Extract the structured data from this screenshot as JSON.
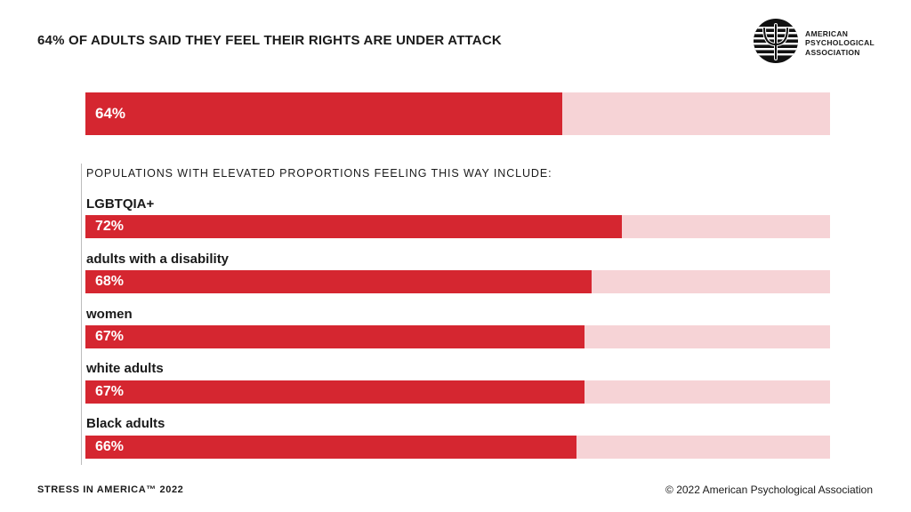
{
  "title": "64% OF ADULTS SAID THEY FEEL THEIR RIGHTS ARE UNDER ATTACK",
  "logo": {
    "icon": "apa-psi-logo-icon",
    "lines": [
      "AMERICAN",
      "PSYCHOLOGICAL",
      "ASSOCIATION"
    ]
  },
  "colors": {
    "fill": "#d52630",
    "track": "#f6d3d6"
  },
  "footer": {
    "left": "STRESS IN AMERICA™ 2022",
    "right": "© 2022 American Psychological Association"
  },
  "chart_data": {
    "type": "bar",
    "title": "64% OF ADULTS SAID THEY FEEL THEIR RIGHTS ARE UNDER ATTACK",
    "xlim": [
      0,
      100
    ],
    "overall": {
      "value": 64,
      "label": "64%"
    },
    "subheading": "POPULATIONS WITH ELEVATED PROPORTIONS FEELING THIS WAY INCLUDE:",
    "categories": [
      "LGBTQIA+",
      "adults with a disability",
      "women",
      "white adults",
      "Black adults"
    ],
    "values": [
      72,
      68,
      67,
      67,
      66
    ],
    "value_labels": [
      "72%",
      "68%",
      "67%",
      "67%",
      "66%"
    ]
  }
}
